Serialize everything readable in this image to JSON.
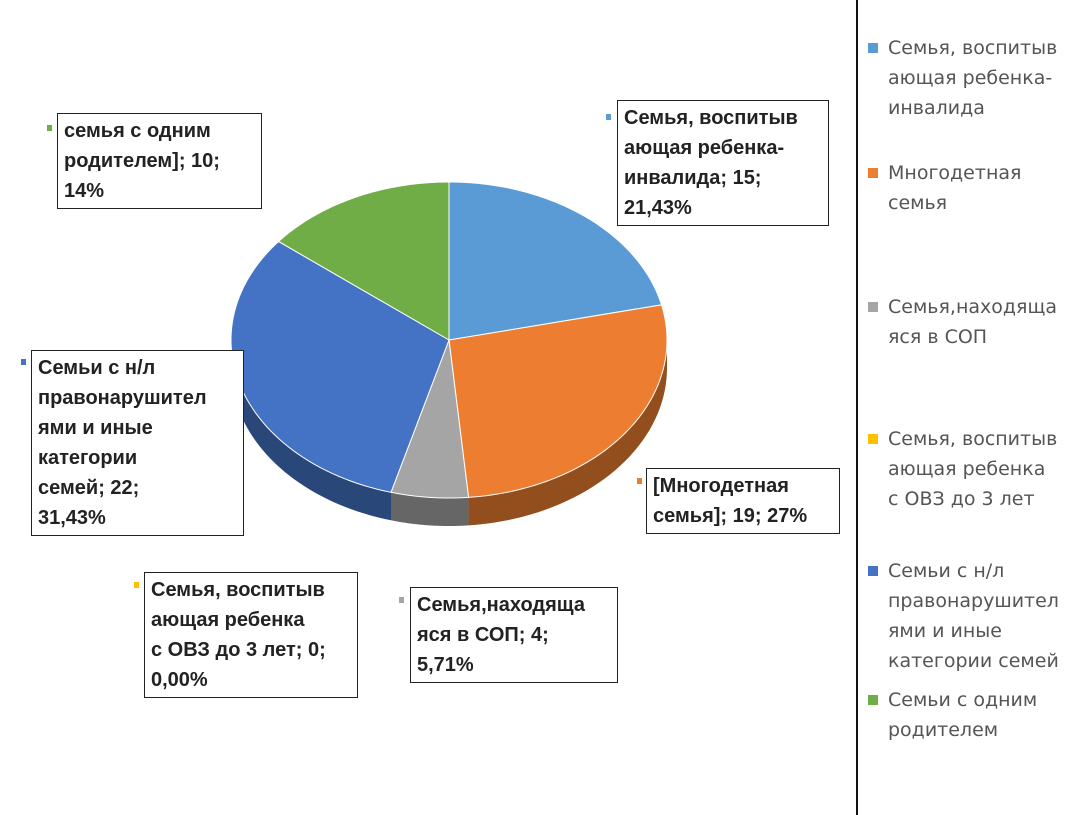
{
  "chart_data": {
    "type": "pie",
    "title": "",
    "slices": [
      {
        "name": "Семья, воспитывающая ребенка-инвалида",
        "value": 15,
        "percent": "21,43%",
        "color": "#5b9bd5"
      },
      {
        "name": "Многодетная семья",
        "value": 19,
        "percent": "27%",
        "color": "#ed7d31"
      },
      {
        "name": "Семья,находящаяся в СОП",
        "value": 4,
        "percent": "5,71%",
        "color": "#a5a5a5"
      },
      {
        "name": "Семья, воспитывающая ребенка с ОВЗ до 3 лет",
        "value": 0,
        "percent": "0,00%",
        "color": "#ffc000"
      },
      {
        "name": "Семьи с н/л правонарушителями и иные категории семей",
        "value": 22,
        "percent": "31,43%",
        "color": "#4472c4"
      },
      {
        "name": "Семьи с одним родителем",
        "value": 10,
        "percent": "14%",
        "color": "#70ad47"
      }
    ],
    "data_labels": [
      {
        "lines": [
          "Семья, воспитыв",
          "ающая ребенка-",
          "инвалида; 15;",
          "21,43%"
        ]
      },
      {
        "lines": [
          "[Многодетная",
          "семья]; 19; 27%"
        ]
      },
      {
        "lines": [
          "Семья,находяща",
          "яся в СОП; 4;",
          "5,71%"
        ]
      },
      {
        "lines": [
          "Семья, воспитыв",
          "ающая ребенка",
          "с ОВЗ до 3 лет; 0;",
          "0,00%"
        ]
      },
      {
        "lines": [
          "Семьи с н/л",
          "правонарушител",
          "ями и иные",
          "категории",
          "семей; 22;",
          "31,43%"
        ]
      },
      {
        "lines": [
          "семья с одним",
          "родителем]; 10;",
          "14%"
        ]
      }
    ],
    "legend": {
      "placement": "right",
      "items": [
        {
          "lines": [
            "Семья, воспитыв",
            "ающая ребенка-",
            "инвалида"
          ]
        },
        {
          "lines": [
            "Многодетная",
            "семья"
          ]
        },
        {
          "lines": [
            "Семья,находяща",
            "яся в СОП"
          ]
        },
        {
          "lines": [
            "Семья, воспитыв",
            "ающая ребенка",
            "с ОВЗ до 3 лет"
          ]
        },
        {
          "lines": [
            "Семьи с н/л",
            "правонарушител",
            "ями и иные",
            "категории семей"
          ]
        },
        {
          "lines": [
            "Семьи с одним",
            "родителем"
          ]
        }
      ]
    }
  }
}
